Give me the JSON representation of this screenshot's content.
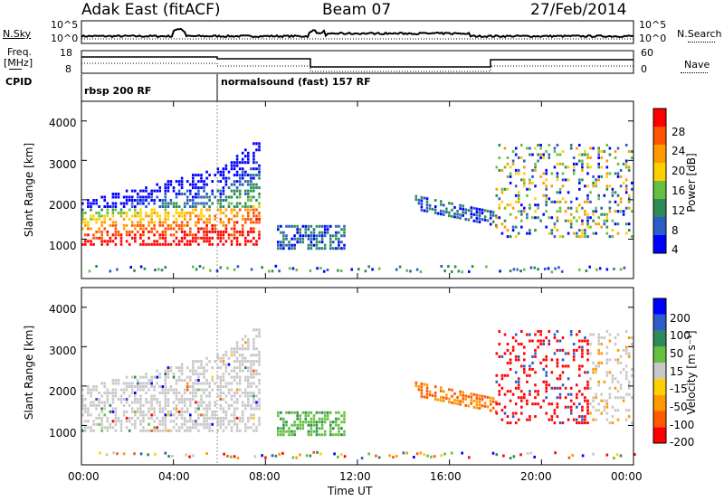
{
  "header": {
    "station": "Adak East (fitACF)",
    "beam": "Beam 07",
    "date": "27/Feb/2014"
  },
  "left_labels": {
    "nsky": "N.Sky",
    "freq_line1": "Freq.",
    "freq_line2": "[MHz]",
    "cpid": "CPID"
  },
  "right_labels": {
    "nsearch": "N.Search",
    "nave": "Nave"
  },
  "noise_axis": {
    "left_top": "10^5",
    "left_bottom": "10^0",
    "right_top": "10^5",
    "right_bottom": "10^0"
  },
  "freq_axis": {
    "left_top": "18",
    "left_bottom": "8",
    "right_top": "60",
    "right_bottom": "0"
  },
  "cpid_segments": [
    {
      "label": "rbsp 200 RF",
      "start": 0
    },
    {
      "label": "normalsound (fast) 157 RF",
      "start": 6
    }
  ],
  "colors": {
    "power_scale": [
      "#0000ff",
      "#2b5cc8",
      "#2e8b57",
      "#66c040",
      "#ffd000",
      "#ff9a00",
      "#ff5500",
      "#ff0000"
    ],
    "velocity_scale": [
      "#ff0000",
      "#ff5a00",
      "#ff9a00",
      "#ffd000",
      "#c8c8c8",
      "#66c040",
      "#2e8b57",
      "#2b5cc8",
      "#0000ff"
    ]
  },
  "chart_data": [
    {
      "type": "heatmap",
      "panel": "power",
      "ylabel": "Slant Range [km]",
      "ylim": [
        0,
        4500
      ],
      "yticks": [
        "1000",
        "2000",
        "3000",
        "4000"
      ],
      "colorbar_label": "Power [dB]",
      "colorbar_ticks": [
        "4",
        "8",
        "12",
        "16",
        "20",
        "24",
        "28"
      ],
      "colorbar_range": [
        0,
        32
      ]
    },
    {
      "type": "heatmap",
      "panel": "velocity",
      "ylabel": "Slant Range [km]",
      "ylim": [
        0,
        4500
      ],
      "yticks": [
        "1000",
        "2000",
        "3000",
        "4000"
      ],
      "colorbar_label": "Velocity [m s⁻¹]",
      "colorbar_ticks": [
        "-200",
        "-100",
        "-50",
        "-15",
        "15",
        "50",
        "100",
        "200"
      ]
    }
  ],
  "x_axis": {
    "label": "Time UT",
    "ticks": [
      "00:00",
      "04:00",
      "08:00",
      "12:00",
      "16:00",
      "20:00",
      "00:00"
    ],
    "range_hours": [
      0,
      24
    ]
  }
}
